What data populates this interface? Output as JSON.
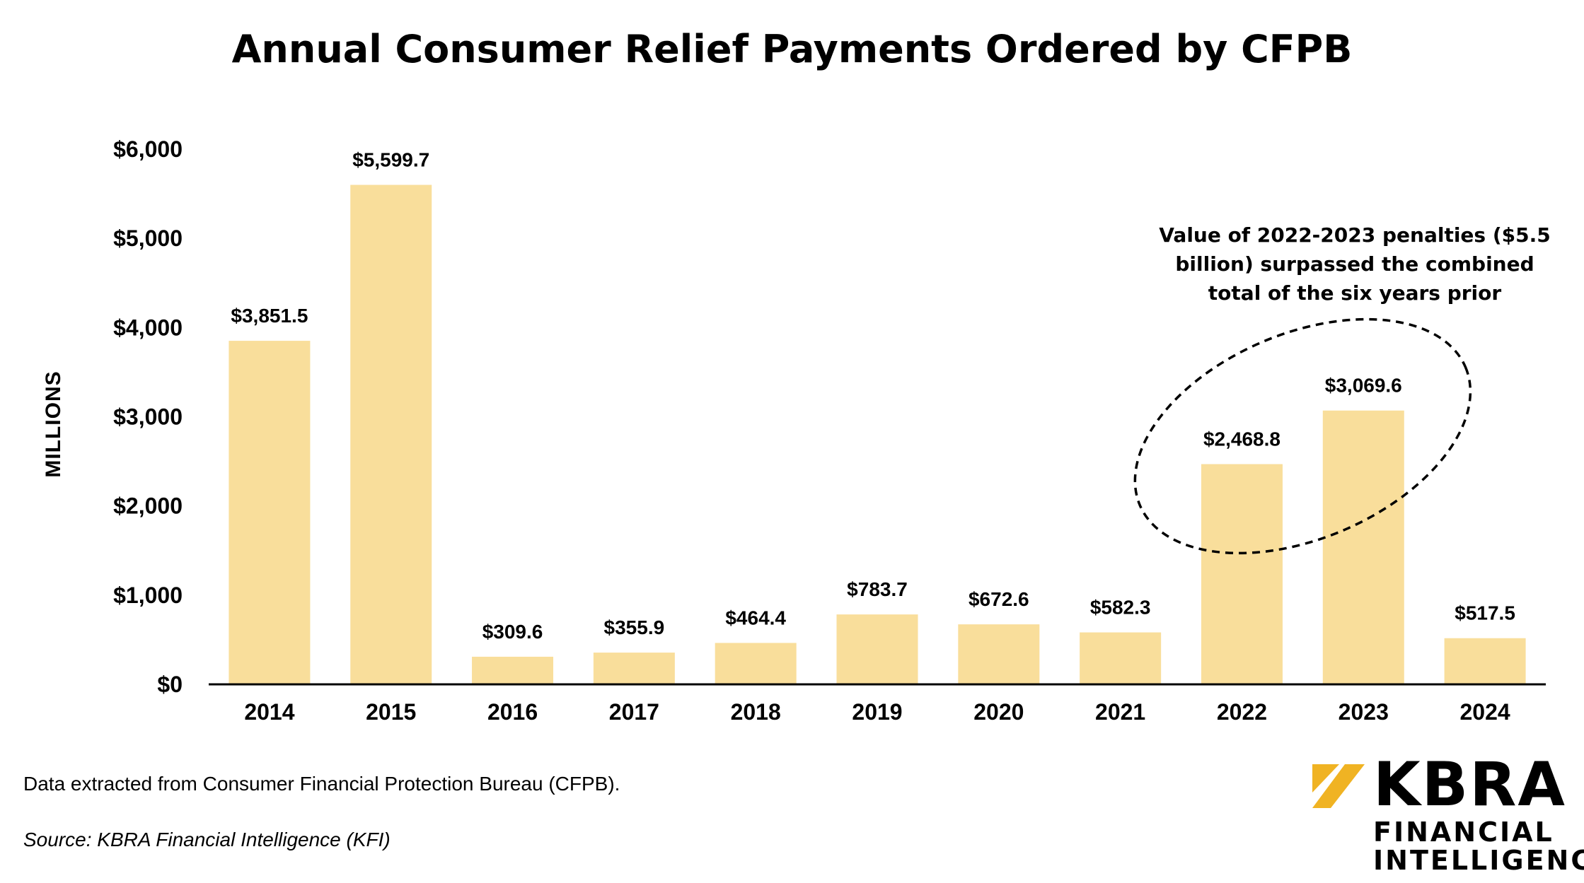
{
  "chart_data": {
    "type": "bar",
    "title": "Annual Consumer Relief Payments Ordered by CFPB",
    "xlabel": "",
    "ylabel": "MILLIONS",
    "categories": [
      "2014",
      "2015",
      "2016",
      "2017",
      "2018",
      "2019",
      "2020",
      "2021",
      "2022",
      "2023",
      "2024"
    ],
    "values": [
      3851.5,
      5599.7,
      309.6,
      355.9,
      464.4,
      783.7,
      672.6,
      582.3,
      2468.8,
      3069.6,
      517.5
    ],
    "data_labels": [
      "$3,851.5",
      "$5,599.7",
      "$309.6",
      "$355.9",
      "$464.4",
      "$783.7",
      "$672.6",
      "$582.3",
      "$2,468.8",
      "$3,069.6",
      "$517.5"
    ],
    "ylim": [
      0,
      6000
    ],
    "yticks": [
      0,
      1000,
      2000,
      3000,
      4000,
      5000,
      6000
    ],
    "ytick_labels": [
      "$0",
      "$1,000",
      "$2,000",
      "$3,000",
      "$4,000",
      "$5,000",
      "$6,000"
    ],
    "grid": false,
    "bar_color": "#f9de9b",
    "annotation": {
      "text_lines": [
        "Value of 2022-2023 penalties ($5.5",
        "billion) surpassed the combined",
        "total of the six years prior"
      ],
      "highlight": [
        "2022",
        "2023"
      ]
    }
  },
  "footer": {
    "note": "Data extracted from Consumer Financial Protection Bureau (CFPB).",
    "source": "Source:  KBRA Financial  Intelligence  (KFI)"
  },
  "logo": {
    "word": "KBRA",
    "line1": "FINANCIAL",
    "line2": "INTELLIGENCE",
    "accent_color": "#f0b323",
    "icon": "kbra-k-mark-icon"
  }
}
